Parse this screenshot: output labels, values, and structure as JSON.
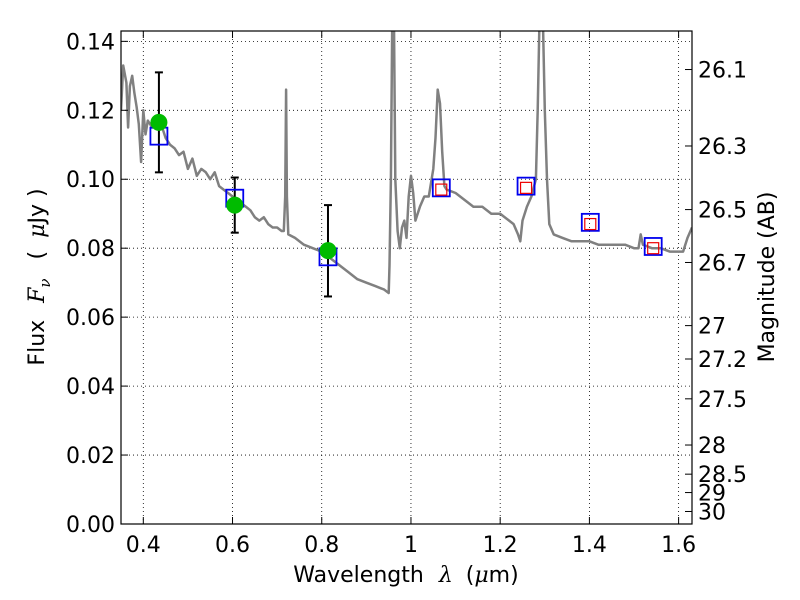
{
  "chart_data": {
    "type": "line",
    "xlabel_prefix": "Wavelength",
    "xlabel_symbol": "λ",
    "xlabel_unit_open": "(",
    "xlabel_unit_mu": "μ",
    "xlabel_unit_rest": "m)",
    "ylabel_prefix": "Flux",
    "ylabel_symbol": "F",
    "ylabel_subscript": "ν",
    "ylabel_unit_open": "(",
    "ylabel_unit_mu": "μ",
    "ylabel_unit_rest": "Jy )",
    "y2label": "Magnitude (AB)",
    "xlim": [
      0.35,
      1.63
    ],
    "ylim": [
      0.0,
      0.143
    ],
    "x_ticks": [
      {
        "v": 0.4,
        "label": "0.4"
      },
      {
        "v": 0.6,
        "label": "0.6"
      },
      {
        "v": 0.8,
        "label": "0.8"
      },
      {
        "v": 1.0,
        "label": "1"
      },
      {
        "v": 1.2,
        "label": "1.2"
      },
      {
        "v": 1.4,
        "label": "1.4"
      },
      {
        "v": 1.6,
        "label": "1.6"
      }
    ],
    "y_ticks": [
      {
        "v": 0.0,
        "label": "0.00"
      },
      {
        "v": 0.02,
        "label": "0.02"
      },
      {
        "v": 0.04,
        "label": "0.04"
      },
      {
        "v": 0.06,
        "label": "0.06"
      },
      {
        "v": 0.08,
        "label": "0.08"
      },
      {
        "v": 0.1,
        "label": "0.10"
      },
      {
        "v": 0.12,
        "label": "0.12"
      },
      {
        "v": 0.14,
        "label": "0.14"
      }
    ],
    "y2_ticks": [
      {
        "mag": 26.1,
        "label": "26.1"
      },
      {
        "mag": 26.3,
        "label": "26.3"
      },
      {
        "mag": 26.5,
        "label": "26.5"
      },
      {
        "mag": 26.7,
        "label": "26.7"
      },
      {
        "mag": 27.0,
        "label": "27"
      },
      {
        "mag": 27.2,
        "label": "27.2"
      },
      {
        "mag": 27.5,
        "label": "27.5"
      },
      {
        "mag": 28.0,
        "label": "28"
      },
      {
        "mag": 28.5,
        "label": "28.5"
      },
      {
        "mag": 29.0,
        "label": "29"
      },
      {
        "mag": 30.0,
        "label": "30"
      }
    ],
    "grid": true,
    "model_spectrum": {
      "color": "#808080",
      "points": [
        [
          0.35,
          0.12
        ],
        [
          0.355,
          0.133
        ],
        [
          0.362,
          0.128
        ],
        [
          0.366,
          0.115
        ],
        [
          0.37,
          0.127
        ],
        [
          0.375,
          0.13
        ],
        [
          0.38,
          0.125
        ],
        [
          0.385,
          0.121
        ],
        [
          0.39,
          0.116
        ],
        [
          0.395,
          0.105
        ],
        [
          0.4,
          0.12
        ],
        [
          0.405,
          0.113
        ],
        [
          0.41,
          0.117
        ],
        [
          0.42,
          0.115
        ],
        [
          0.43,
          0.117
        ],
        [
          0.44,
          0.116
        ],
        [
          0.45,
          0.112
        ],
        [
          0.46,
          0.11
        ],
        [
          0.47,
          0.109
        ],
        [
          0.48,
          0.107
        ],
        [
          0.49,
          0.108
        ],
        [
          0.5,
          0.103
        ],
        [
          0.51,
          0.106
        ],
        [
          0.52,
          0.101
        ],
        [
          0.53,
          0.103
        ],
        [
          0.54,
          0.102
        ],
        [
          0.55,
          0.1
        ],
        [
          0.56,
          0.102
        ],
        [
          0.57,
          0.098
        ],
        [
          0.58,
          0.097
        ],
        [
          0.59,
          0.096
        ],
        [
          0.6,
          0.095
        ],
        [
          0.61,
          0.094
        ],
        [
          0.62,
          0.093
        ],
        [
          0.63,
          0.092
        ],
        [
          0.64,
          0.091
        ],
        [
          0.65,
          0.089
        ],
        [
          0.66,
          0.088
        ],
        [
          0.67,
          0.089
        ],
        [
          0.68,
          0.087
        ],
        [
          0.69,
          0.086
        ],
        [
          0.7,
          0.086
        ],
        [
          0.71,
          0.085
        ],
        [
          0.715,
          0.085
        ],
        [
          0.718,
          0.095
        ],
        [
          0.72,
          0.126
        ],
        [
          0.722,
          0.095
        ],
        [
          0.725,
          0.084
        ],
        [
          0.74,
          0.083
        ],
        [
          0.76,
          0.081
        ],
        [
          0.78,
          0.08
        ],
        [
          0.8,
          0.079
        ],
        [
          0.82,
          0.077
        ],
        [
          0.84,
          0.075
        ],
        [
          0.86,
          0.073
        ],
        [
          0.88,
          0.071
        ],
        [
          0.9,
          0.07
        ],
        [
          0.92,
          0.069
        ],
        [
          0.94,
          0.068
        ],
        [
          0.95,
          0.067
        ],
        [
          0.952,
          0.075
        ],
        [
          0.955,
          0.1
        ],
        [
          0.958,
          0.145
        ],
        [
          0.962,
          0.145
        ],
        [
          0.965,
          0.1
        ],
        [
          0.97,
          0.085
        ],
        [
          0.975,
          0.08
        ],
        [
          0.98,
          0.086
        ],
        [
          0.985,
          0.088
        ],
        [
          0.99,
          0.083
        ],
        [
          0.995,
          0.095
        ],
        [
          1.0,
          0.101
        ],
        [
          1.005,
          0.096
        ],
        [
          1.01,
          0.088
        ],
        [
          1.02,
          0.092
        ],
        [
          1.03,
          0.095
        ],
        [
          1.04,
          0.095
        ],
        [
          1.05,
          0.103
        ],
        [
          1.055,
          0.112
        ],
        [
          1.06,
          0.126
        ],
        [
          1.065,
          0.122
        ],
        [
          1.07,
          0.108
        ],
        [
          1.075,
          0.098
        ],
        [
          1.08,
          0.097
        ],
        [
          1.1,
          0.096
        ],
        [
          1.12,
          0.094
        ],
        [
          1.14,
          0.092
        ],
        [
          1.16,
          0.092
        ],
        [
          1.18,
          0.09
        ],
        [
          1.2,
          0.09
        ],
        [
          1.22,
          0.088
        ],
        [
          1.23,
          0.087
        ],
        [
          1.24,
          0.084
        ],
        [
          1.245,
          0.082
        ],
        [
          1.25,
          0.088
        ],
        [
          1.26,
          0.092
        ],
        [
          1.27,
          0.095
        ],
        [
          1.28,
          0.1
        ],
        [
          1.284,
          0.12
        ],
        [
          1.288,
          0.145
        ],
        [
          1.296,
          0.145
        ],
        [
          1.3,
          0.12
        ],
        [
          1.305,
          0.1
        ],
        [
          1.31,
          0.087
        ],
        [
          1.32,
          0.084
        ],
        [
          1.34,
          0.083
        ],
        [
          1.36,
          0.082
        ],
        [
          1.38,
          0.082
        ],
        [
          1.4,
          0.082
        ],
        [
          1.42,
          0.081
        ],
        [
          1.44,
          0.081
        ],
        [
          1.46,
          0.081
        ],
        [
          1.48,
          0.081
        ],
        [
          1.5,
          0.08
        ],
        [
          1.51,
          0.08
        ],
        [
          1.515,
          0.084
        ],
        [
          1.52,
          0.081
        ],
        [
          1.54,
          0.08
        ],
        [
          1.56,
          0.08
        ],
        [
          1.58,
          0.079
        ],
        [
          1.6,
          0.079
        ],
        [
          1.61,
          0.079
        ],
        [
          1.62,
          0.083
        ],
        [
          1.63,
          0.086
        ]
      ]
    },
    "observed_points": {
      "color": "#00bb00",
      "points": [
        {
          "x": 0.435,
          "y": 0.1165,
          "yerr_low": 0.102,
          "yerr_high": 0.131
        },
        {
          "x": 0.605,
          "y": 0.0925,
          "yerr_low": 0.0845,
          "yerr_high": 0.1005
        },
        {
          "x": 0.814,
          "y": 0.0793,
          "yerr_low": 0.066,
          "yerr_high": 0.0925
        }
      ]
    },
    "model_fluxes_blue": {
      "color": "#0000ee",
      "points": [
        {
          "x": 0.435,
          "y": 0.1125
        },
        {
          "x": 0.605,
          "y": 0.0945
        },
        {
          "x": 0.814,
          "y": 0.0775
        },
        {
          "x": 1.068,
          "y": 0.0975
        },
        {
          "x": 1.258,
          "y": 0.098
        },
        {
          "x": 1.402,
          "y": 0.0875
        },
        {
          "x": 1.543,
          "y": 0.0805
        }
      ]
    },
    "model_fluxes_red": {
      "color": "#ee0000",
      "points": [
        {
          "x": 1.068,
          "y": 0.097
        },
        {
          "x": 1.258,
          "y": 0.0975
        },
        {
          "x": 1.402,
          "y": 0.087
        },
        {
          "x": 1.543,
          "y": 0.08
        }
      ]
    }
  }
}
